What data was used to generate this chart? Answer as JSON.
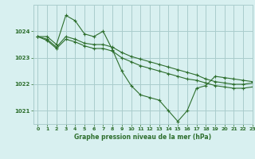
{
  "title": "Graphe pression niveau de la mer (hPa)",
  "bg_color": "#d8f0f0",
  "grid_color": "#aacccc",
  "line_color": "#2d6e2d",
  "series": [
    [
      1023.8,
      1023.8,
      1023.5,
      1024.6,
      1024.4,
      1023.9,
      1023.8,
      1024.0,
      1023.3,
      1022.5,
      1021.95,
      1021.6,
      1021.5,
      1021.4,
      1021.0,
      1020.6,
      1021.0,
      1021.85,
      1021.95,
      1022.3,
      1022.25,
      1022.2,
      1022.15,
      1022.1
    ],
    [
      1023.8,
      1023.7,
      1023.4,
      1023.8,
      1023.7,
      1023.55,
      1023.5,
      1023.5,
      1023.4,
      1023.2,
      1023.05,
      1022.95,
      1022.85,
      1022.75,
      1022.65,
      1022.55,
      1022.45,
      1022.35,
      1022.2,
      1022.1,
      1022.05,
      1022.0,
      1022.0,
      1022.05
    ],
    [
      1023.8,
      1023.65,
      1023.35,
      1023.7,
      1023.6,
      1023.45,
      1023.35,
      1023.35,
      1023.25,
      1023.0,
      1022.85,
      1022.7,
      1022.6,
      1022.5,
      1022.4,
      1022.3,
      1022.2,
      1022.15,
      1022.05,
      1021.95,
      1021.9,
      1021.85,
      1021.85,
      1021.9
    ]
  ],
  "ylim": [
    1020.5,
    1025.0
  ],
  "yticks": [
    1021,
    1022,
    1023,
    1024
  ],
  "xlim": [
    -0.5,
    23
  ],
  "xticks": [
    0,
    1,
    2,
    3,
    4,
    5,
    6,
    7,
    8,
    9,
    10,
    11,
    12,
    13,
    14,
    15,
    16,
    17,
    18,
    19,
    20,
    21,
    22,
    23
  ]
}
